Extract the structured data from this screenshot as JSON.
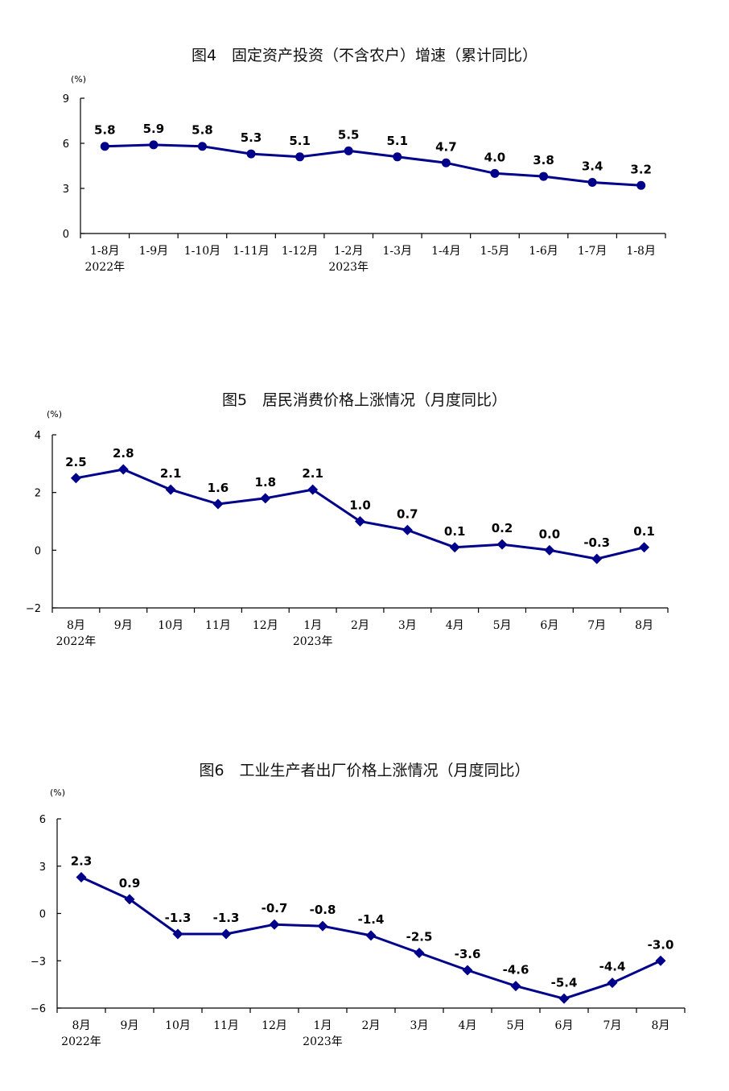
{
  "chart_data": [
    {
      "type": "line",
      "title": "图4　固定资产投资（不含农户）增速（累计同比）",
      "unit": "(%)",
      "categories": [
        "1-8月",
        "1-9月",
        "1-10月",
        "1-11月",
        "1-12月",
        "1-2月",
        "1-3月",
        "1-4月",
        "1-5月",
        "1-6月",
        "1-7月",
        "1-8月"
      ],
      "year_labels": [
        {
          "index": 0,
          "text": "2022年"
        },
        {
          "index": 5,
          "text": "2023年"
        }
      ],
      "values": [
        5.8,
        5.9,
        5.8,
        5.3,
        5.1,
        5.5,
        5.1,
        4.7,
        4.0,
        3.8,
        3.4,
        3.2
      ],
      "labels": [
        "5.8",
        "5.9",
        "5.8",
        "5.3",
        "5.1",
        "5.5",
        "5.1",
        "4.7",
        "4.0",
        "3.8",
        "3.4",
        "3.2"
      ],
      "yticks": [
        "0",
        "3",
        "6",
        "9"
      ],
      "ytick_values": [
        0,
        3,
        6,
        9
      ],
      "ylim": [
        0,
        9
      ],
      "marker": "circle",
      "color": "#00008b"
    },
    {
      "type": "line",
      "title": "图5　居民消费价格上涨情况（月度同比）",
      "unit": "(%)",
      "categories": [
        "8月",
        "9月",
        "10月",
        "11月",
        "12月",
        "1月",
        "2月",
        "3月",
        "4月",
        "5月",
        "6月",
        "7月",
        "8月"
      ],
      "year_labels": [
        {
          "index": 0,
          "text": "2022年"
        },
        {
          "index": 5,
          "text": "2023年"
        }
      ],
      "values": [
        2.5,
        2.8,
        2.1,
        1.6,
        1.8,
        2.1,
        1.0,
        0.7,
        0.1,
        0.2,
        0.0,
        -0.3,
        0.1
      ],
      "labels": [
        "2.5",
        "2.8",
        "2.1",
        "1.6",
        "1.8",
        "2.1",
        "1.0",
        "0.7",
        "0.1",
        "0.2",
        "0.0",
        "-0.3",
        "0.1"
      ],
      "yticks": [
        "−2",
        "0",
        "2",
        "4"
      ],
      "ytick_values": [
        -2,
        0,
        2,
        4
      ],
      "ylim": [
        -2,
        4
      ],
      "marker": "diamond",
      "color": "#00008b"
    },
    {
      "type": "line",
      "title": "图6　工业生产者出厂价格上涨情况（月度同比）",
      "unit": "(%)",
      "categories": [
        "8月",
        "9月",
        "10月",
        "11月",
        "12月",
        "1月",
        "2月",
        "3月",
        "4月",
        "5月",
        "6月",
        "7月",
        "8月"
      ],
      "year_labels": [
        {
          "index": 0,
          "text": "2022年"
        },
        {
          "index": 5,
          "text": "2023年"
        }
      ],
      "values": [
        2.3,
        0.9,
        -1.3,
        -1.3,
        -0.7,
        -0.8,
        -1.4,
        -2.5,
        -3.6,
        -4.6,
        -5.4,
        -4.4,
        -3.0
      ],
      "labels": [
        "2.3",
        "0.9",
        "-1.3",
        "-1.3",
        "-0.7",
        "-0.8",
        "-1.4",
        "-2.5",
        "-3.6",
        "-4.6",
        "-5.4",
        "-4.4",
        "-3.0"
      ],
      "yticks": [
        "−6",
        "−3",
        "0",
        "3",
        "6"
      ],
      "ytick_values": [
        -6,
        -3,
        0,
        3,
        6
      ],
      "ylim": [
        -6,
        6
      ],
      "marker": "diamond",
      "color": "#00008b"
    }
  ]
}
